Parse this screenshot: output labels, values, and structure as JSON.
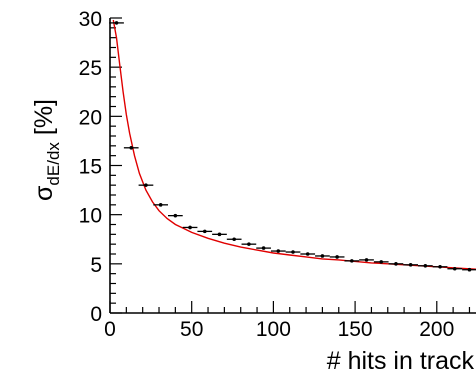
{
  "chart_data": {
    "type": "scatter",
    "title": "",
    "xlabel": "# hits in track",
    "ylabel": {
      "main": "σ",
      "sub": "dE/dx",
      "unit": "[%]"
    },
    "xlim": [
      0,
      224
    ],
    "ylim": [
      0,
      30
    ],
    "xticks": [
      0,
      50,
      100,
      150,
      200
    ],
    "yticks": [
      0,
      5,
      10,
      15,
      20,
      25,
      30
    ],
    "x_bin_width": 9,
    "grid": false,
    "legend": "none",
    "series": [
      {
        "kind": "points_with_x_error",
        "color": "#000000",
        "x": [
          4,
          13,
          22,
          31,
          40,
          49,
          58,
          67,
          76,
          85,
          94,
          103,
          112,
          121,
          130,
          139,
          148,
          157,
          166,
          175,
          184,
          193,
          202,
          211,
          220
        ],
        "y": [
          29.5,
          16.8,
          13.0,
          11.0,
          9.9,
          8.7,
          8.3,
          8.0,
          7.5,
          7.0,
          6.6,
          6.3,
          6.2,
          6.0,
          5.8,
          5.7,
          5.3,
          5.4,
          5.2,
          5.0,
          4.9,
          4.8,
          4.7,
          4.5,
          4.4
        ]
      },
      {
        "kind": "fit_curve",
        "color": "#e00000",
        "x": [
          2,
          4,
          6,
          8,
          10,
          12,
          15,
          18,
          22,
          26,
          30,
          35,
          40,
          45,
          50,
          60,
          70,
          80,
          90,
          100,
          110,
          120,
          130,
          140,
          150,
          160,
          170,
          180,
          190,
          200,
          210,
          220,
          224
        ],
        "y": [
          29.8,
          28.0,
          25.2,
          22.5,
          20.2,
          18.3,
          16.0,
          14.2,
          12.5,
          11.3,
          10.4,
          9.6,
          9.0,
          8.6,
          8.2,
          7.6,
          7.1,
          6.7,
          6.4,
          6.1,
          5.9,
          5.7,
          5.5,
          5.4,
          5.25,
          5.1,
          5.0,
          4.9,
          4.8,
          4.7,
          4.6,
          4.5,
          4.45
        ]
      }
    ]
  }
}
